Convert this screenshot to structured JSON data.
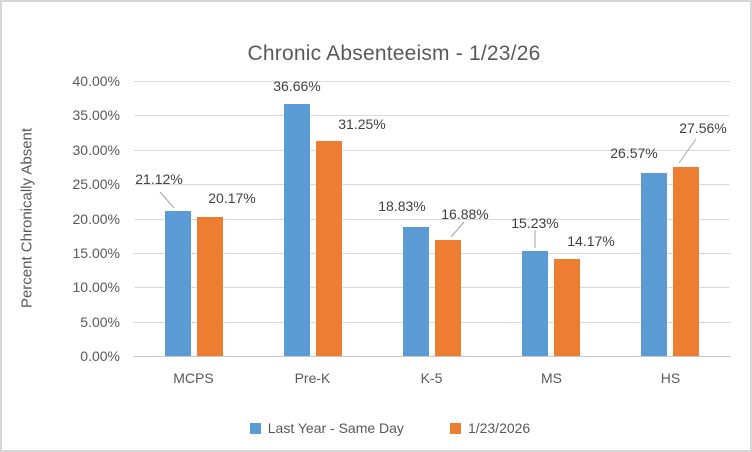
{
  "window": {
    "background": "#FFFFFF",
    "border_color": "#D7D7D7"
  },
  "chart_data": {
    "type": "bar",
    "title": "Chronic Absenteeism - 1/23/26",
    "xlabel": "",
    "ylabel": "Percent Chronically Absent",
    "categories": [
      "MCPS",
      "Pre-K",
      "K-5",
      "MS",
      "HS"
    ],
    "series": [
      {
        "name": "Last Year - Same Day",
        "color": "#5B9BD5",
        "values": [
          21.12,
          36.66,
          18.83,
          15.23,
          26.57
        ],
        "labels": [
          "21.12%",
          "36.66%",
          "18.83%",
          "15.23%",
          "26.57%"
        ]
      },
      {
        "name": "1/23/2026",
        "color": "#ED7D31",
        "values": [
          20.17,
          31.25,
          16.88,
          14.17,
          27.56
        ],
        "labels": [
          "20.17%",
          "31.25%",
          "16.88%",
          "14.17%",
          "27.56%"
        ]
      }
    ],
    "y_axis": {
      "min": 0,
      "max": 40,
      "step": 5,
      "tick_labels": [
        "0.00%",
        "5.00%",
        "10.00%",
        "15.00%",
        "20.00%",
        "25.00%",
        "30.00%",
        "35.00%",
        "40.00%"
      ]
    },
    "grid": true,
    "legend_position": "bottom",
    "colors": {
      "gridline": "#D9D9D9",
      "axis_line": "#C6C6C6",
      "axis_text": "#595959",
      "title_text": "#595959",
      "data_label_text": "#404040",
      "leader_line": "#A6A6A6"
    }
  }
}
